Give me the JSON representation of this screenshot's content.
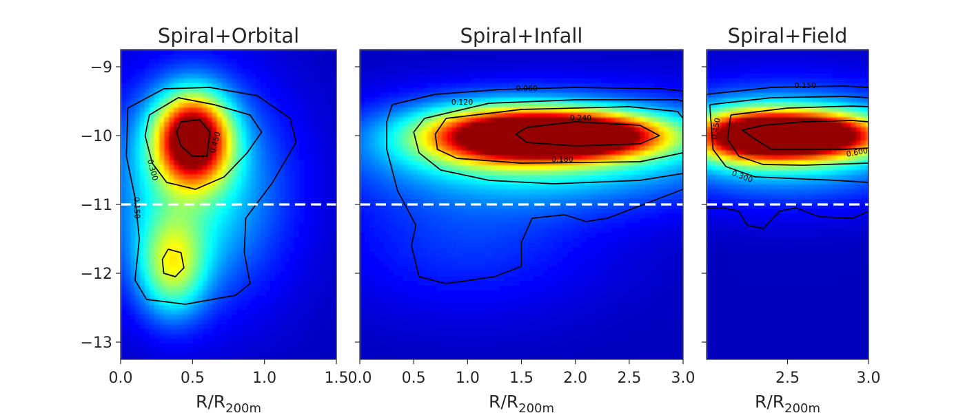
{
  "chart_data": [
    {
      "type": "heatmap",
      "title": "Spiral+Orbital",
      "xlabel_main": "R/R",
      "xlabel_sub": "200m",
      "xlim": [
        0.0,
        1.5
      ],
      "ylim": [
        -13.25,
        -8.75
      ],
      "xticks": [
        "0.0",
        "0.5",
        "1.0",
        "1.5"
      ],
      "xtick_values": [
        0.0,
        0.5,
        1.0,
        1.5
      ],
      "yticks": [
        "−9",
        "−10",
        "−11",
        "−12",
        "−13"
      ],
      "ytick_values": [
        -9,
        -10,
        -11,
        -12,
        -13
      ],
      "reference_line": {
        "y": -11,
        "style": "dashed",
        "color": "#ffffff"
      },
      "colormap": "jet",
      "density_peaks": [
        {
          "x": 0.5,
          "y": -10.05,
          "sx": 0.18,
          "sy": 0.45,
          "w": 1.0
        },
        {
          "x": 0.36,
          "y": -11.9,
          "sx": 0.16,
          "sy": 0.5,
          "w": 0.42
        },
        {
          "x": 0.5,
          "y": -10.8,
          "sx": 0.45,
          "sy": 1.1,
          "w": 0.35
        }
      ],
      "contour_labels": [
        {
          "text": "0.450",
          "x": 0.66,
          "y": -10.1,
          "rot": -75
        },
        {
          "text": "0.300",
          "x": 0.22,
          "y": -10.5,
          "rot": 75
        },
        {
          "text": "0.150",
          "x": 0.11,
          "y": -11.05,
          "rot": 88
        }
      ],
      "contours": [
        [
          [
            0.42,
            -9.8
          ],
          [
            0.55,
            -9.77
          ],
          [
            0.62,
            -9.95
          ],
          [
            0.6,
            -10.3
          ],
          [
            0.5,
            -10.3
          ],
          [
            0.42,
            -10.15
          ],
          [
            0.39,
            -9.95
          ],
          [
            0.42,
            -9.8
          ]
        ],
        [
          [
            0.2,
            -9.7
          ],
          [
            0.4,
            -9.45
          ],
          [
            0.65,
            -9.55
          ],
          [
            0.9,
            -9.7
          ],
          [
            0.98,
            -9.95
          ],
          [
            0.88,
            -10.25
          ],
          [
            0.72,
            -10.6
          ],
          [
            0.52,
            -10.78
          ],
          [
            0.32,
            -10.68
          ],
          [
            0.22,
            -10.4
          ],
          [
            0.17,
            -10.0
          ],
          [
            0.2,
            -9.7
          ]
        ],
        [
          [
            0.05,
            -9.6
          ],
          [
            0.3,
            -9.32
          ],
          [
            0.62,
            -9.3
          ],
          [
            0.95,
            -9.42
          ],
          [
            1.18,
            -9.75
          ],
          [
            1.22,
            -10.1
          ],
          [
            1.05,
            -10.7
          ],
          [
            0.87,
            -11.2
          ],
          [
            0.86,
            -11.7
          ],
          [
            0.9,
            -12.15
          ],
          [
            0.8,
            -12.32
          ],
          [
            0.45,
            -12.45
          ],
          [
            0.18,
            -12.38
          ],
          [
            0.1,
            -12.1
          ],
          [
            0.13,
            -11.5
          ],
          [
            0.1,
            -10.9
          ],
          [
            0.04,
            -10.3
          ],
          [
            0.05,
            -9.6
          ]
        ],
        [
          [
            0.33,
            -11.65
          ],
          [
            0.42,
            -11.7
          ],
          [
            0.44,
            -11.92
          ],
          [
            0.38,
            -12.05
          ],
          [
            0.3,
            -12.0
          ],
          [
            0.29,
            -11.8
          ],
          [
            0.33,
            -11.65
          ]
        ]
      ]
    },
    {
      "type": "heatmap",
      "title": "Spiral+Infall",
      "xlabel_main": "R/R",
      "xlabel_sub": "200m",
      "xlim": [
        0.0,
        3.0
      ],
      "ylim": [
        -13.25,
        -8.75
      ],
      "xticks": [
        "0.0",
        "0.5",
        "1.0",
        "1.5",
        "2.0",
        "2.5",
        "3.0"
      ],
      "xtick_values": [
        0.0,
        0.5,
        1.0,
        1.5,
        2.0,
        2.5,
        3.0
      ],
      "yticks": [
        "−9",
        "−10",
        "−11",
        "−12",
        "−13"
      ],
      "ytick_values": [
        -9,
        -10,
        -11,
        -12,
        -13
      ],
      "reference_line": {
        "y": -11,
        "style": "dashed",
        "color": "#ffffff"
      },
      "colormap": "jet",
      "density_peaks": [
        {
          "x": 2.05,
          "y": -10.0,
          "sx": 0.55,
          "sy": 0.22,
          "w": 1.0
        },
        {
          "x": 1.3,
          "y": -10.0,
          "sx": 0.55,
          "sy": 0.28,
          "w": 0.75
        },
        {
          "x": 1.8,
          "y": -10.2,
          "sx": 1.3,
          "sy": 0.55,
          "w": 0.4
        },
        {
          "x": 1.0,
          "y": -11.6,
          "sx": 0.9,
          "sy": 0.7,
          "w": 0.12
        }
      ],
      "contour_labels": [
        {
          "text": "0.060",
          "x": 1.55,
          "y": -9.32,
          "rot": 0
        },
        {
          "text": "0.120",
          "x": 0.95,
          "y": -9.52,
          "rot": 0
        },
        {
          "text": "0.240",
          "x": 2.05,
          "y": -9.75,
          "rot": 0
        },
        {
          "text": "0.180",
          "x": 1.88,
          "y": -10.35,
          "rot": 0
        }
      ],
      "contours": [
        [
          [
            1.55,
            -9.88
          ],
          [
            2.0,
            -9.8
          ],
          [
            2.6,
            -9.85
          ],
          [
            2.78,
            -10.0
          ],
          [
            2.6,
            -10.12
          ],
          [
            2.0,
            -10.15
          ],
          [
            1.55,
            -10.1
          ],
          [
            1.45,
            -9.98
          ],
          [
            1.55,
            -9.88
          ]
        ],
        [
          [
            0.8,
            -9.75
          ],
          [
            1.5,
            -9.62
          ],
          [
            2.5,
            -9.58
          ],
          [
            2.95,
            -9.65
          ],
          [
            3.0,
            -9.75
          ],
          [
            3.0,
            -10.25
          ],
          [
            2.6,
            -10.38
          ],
          [
            1.5,
            -10.4
          ],
          [
            0.9,
            -10.33
          ],
          [
            0.72,
            -10.2
          ],
          [
            0.7,
            -9.98
          ],
          [
            0.8,
            -9.75
          ]
        ],
        [
          [
            0.6,
            -9.75
          ],
          [
            1.2,
            -9.53
          ],
          [
            2.0,
            -9.48
          ],
          [
            2.95,
            -9.48
          ],
          [
            3.0,
            -9.5
          ],
          [
            3.0,
            -10.55
          ],
          [
            2.6,
            -10.65
          ],
          [
            1.8,
            -10.7
          ],
          [
            1.2,
            -10.65
          ],
          [
            0.75,
            -10.5
          ],
          [
            0.55,
            -10.25
          ],
          [
            0.5,
            -9.95
          ],
          [
            0.6,
            -9.75
          ]
        ],
        [
          [
            0.3,
            -9.55
          ],
          [
            0.7,
            -9.4
          ],
          [
            1.3,
            -9.33
          ],
          [
            2.0,
            -9.3
          ],
          [
            2.8,
            -9.32
          ],
          [
            3.0,
            -9.35
          ],
          [
            3.0,
            -10.78
          ],
          [
            2.8,
            -10.9
          ],
          [
            2.3,
            -11.2
          ],
          [
            2.1,
            -11.25
          ],
          [
            1.9,
            -11.15
          ],
          [
            1.6,
            -11.2
          ],
          [
            1.5,
            -11.55
          ],
          [
            1.5,
            -11.9
          ],
          [
            1.25,
            -12.05
          ],
          [
            0.8,
            -12.15
          ],
          [
            0.55,
            -12.05
          ],
          [
            0.48,
            -11.6
          ],
          [
            0.52,
            -11.3
          ],
          [
            0.35,
            -10.8
          ],
          [
            0.25,
            -10.2
          ],
          [
            0.25,
            -9.8
          ],
          [
            0.3,
            -9.55
          ]
        ]
      ]
    },
    {
      "type": "heatmap",
      "title": "Spiral+Field",
      "xlabel_main": "R/R",
      "xlabel_sub": "200m",
      "xlim": [
        2.0,
        3.0
      ],
      "ylim": [
        -13.25,
        -8.75
      ],
      "xticks": [
        "2.5",
        "3.0"
      ],
      "xtick_values": [
        2.5,
        3.0
      ],
      "yticks": [
        "−9",
        "−10",
        "−11",
        "−12",
        "−13"
      ],
      "ytick_values": [
        -9,
        -10,
        -11,
        -12,
        -13
      ],
      "reference_line": {
        "y": -11,
        "style": "dashed",
        "color": "#ffffff"
      },
      "colormap": "jet",
      "density_peaks": [
        {
          "x": 2.65,
          "y": -10.0,
          "sx": 0.3,
          "sy": 0.22,
          "w": 1.0
        },
        {
          "x": 2.25,
          "y": -10.0,
          "sx": 0.25,
          "sy": 0.25,
          "w": 0.7
        },
        {
          "x": 2.5,
          "y": -10.1,
          "sx": 0.6,
          "sy": 0.55,
          "w": 0.4
        }
      ],
      "contour_labels": [
        {
          "text": "0.150",
          "x": 2.61,
          "y": -9.28,
          "rot": 0
        },
        {
          "text": "0.450",
          "x": 2.06,
          "y": -9.9,
          "rot": -80
        },
        {
          "text": "0.600",
          "x": 2.93,
          "y": -10.25,
          "rot": -10
        },
        {
          "text": "0.300",
          "x": 2.22,
          "y": -10.6,
          "rot": 20
        }
      ],
      "contours": [
        [
          [
            2.22,
            -9.92
          ],
          [
            2.35,
            -9.85
          ],
          [
            2.6,
            -9.8
          ],
          [
            2.9,
            -9.78
          ],
          [
            3.0,
            -9.8
          ],
          [
            3.0,
            -10.18
          ],
          [
            2.85,
            -10.2
          ],
          [
            2.6,
            -10.2
          ],
          [
            2.4,
            -10.2
          ],
          [
            2.3,
            -10.05
          ],
          [
            2.22,
            -9.92
          ]
        ],
        [
          [
            2.15,
            -9.7
          ],
          [
            2.5,
            -9.6
          ],
          [
            2.9,
            -9.57
          ],
          [
            3.0,
            -9.58
          ],
          [
            3.0,
            -10.4
          ],
          [
            2.6,
            -10.43
          ],
          [
            2.35,
            -10.42
          ],
          [
            2.2,
            -10.3
          ],
          [
            2.13,
            -10.05
          ],
          [
            2.15,
            -9.7
          ]
        ],
        [
          [
            2.02,
            -9.55
          ],
          [
            2.4,
            -9.45
          ],
          [
            2.85,
            -9.43
          ],
          [
            3.0,
            -9.45
          ],
          [
            3.0,
            -10.68
          ],
          [
            2.8,
            -10.65
          ],
          [
            2.5,
            -10.62
          ],
          [
            2.3,
            -10.6
          ],
          [
            2.12,
            -10.45
          ],
          [
            2.04,
            -10.2
          ],
          [
            2.02,
            -9.55
          ]
        ],
        [
          [
            2.0,
            -9.4
          ],
          [
            2.4,
            -9.3
          ],
          [
            2.85,
            -9.28
          ],
          [
            3.0,
            -9.3
          ],
          [
            3.0,
            -11.1
          ],
          [
            2.9,
            -11.2
          ],
          [
            2.7,
            -11.18
          ],
          [
            2.55,
            -11.05
          ],
          [
            2.45,
            -11.1
          ],
          [
            2.35,
            -11.35
          ],
          [
            2.25,
            -11.3
          ],
          [
            2.2,
            -11.1
          ],
          [
            2.1,
            -11.05
          ],
          [
            2.0,
            -11.05
          ],
          [
            2.0,
            -9.4
          ]
        ]
      ]
    }
  ]
}
